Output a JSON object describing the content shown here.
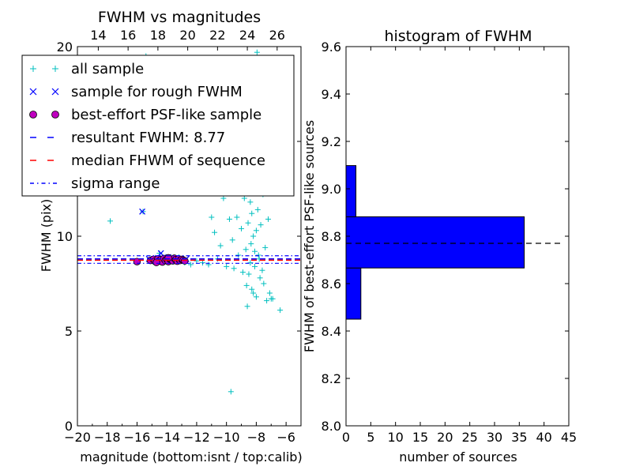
{
  "chart_data": [
    {
      "type": "scatter",
      "title": "FWHM vs magnitudes",
      "xlabel": "magnitude (bottom:isnt / top:calib)",
      "ylabel": "FWHM (pix)",
      "xlim": [
        -20,
        -5
      ],
      "ylim": [
        0,
        20
      ],
      "x_ticks": [
        -20,
        -18,
        -16,
        -14,
        -12,
        -10,
        -8,
        -6
      ],
      "x_tick_labels": [
        "−20",
        "−18",
        "−16",
        "−14",
        "−12",
        "−10",
        "−8",
        "−6"
      ],
      "y_ticks": [
        0,
        5,
        10,
        15,
        20
      ],
      "y_tick_labels": [
        "0",
        "5",
        "10",
        "15",
        "20"
      ],
      "top_axis": {
        "ticks": [
          14,
          16,
          18,
          20,
          22,
          24,
          26
        ],
        "tick_labels": [
          "14",
          "16",
          "18",
          "20",
          "22",
          "24",
          "26"
        ],
        "lim": [
          12.6,
          27.6
        ]
      },
      "legend": {
        "placement": "top-left",
        "entries": [
          {
            "label": "all sample",
            "marker": "+",
            "color": "#00bfbf"
          },
          {
            "label": "sample for rough FWHM",
            "marker": "x",
            "color": "#0000ff"
          },
          {
            "label": "best-effort PSF-like sample",
            "marker": "o",
            "color": "#bf00bf"
          },
          {
            "label": "resultant FWHM: 8.77",
            "line": "dashed",
            "color": "#0000ff"
          },
          {
            "label": "median FHWM of sequence",
            "line": "dashed",
            "color": "#ff0000"
          },
          {
            "label": "sigma range",
            "line": "dashdot",
            "color": "#0000ff"
          }
        ]
      },
      "lines": {
        "resultant_fwhm": 8.77,
        "median_fwhm": 8.77,
        "sigma_range": [
          8.57,
          8.97
        ]
      },
      "series": [
        {
          "name": "all sample",
          "color": "#00bfbf",
          "points": [
            [
              -17.8,
              10.8
            ],
            [
              -15.6,
              11.3
            ],
            [
              -15.4,
              19.5
            ],
            [
              -14.5,
              9.1
            ],
            [
              -13.2,
              8.9
            ],
            [
              -12.8,
              8.6
            ],
            [
              -12.4,
              8.5
            ],
            [
              -12.0,
              8.7
            ],
            [
              -11.6,
              8.6
            ],
            [
              -11.2,
              8.5
            ],
            [
              -11.0,
              11.0
            ],
            [
              -10.8,
              10.2
            ],
            [
              -10.6,
              8.8
            ],
            [
              -10.4,
              9.5
            ],
            [
              -10.2,
              12.0
            ],
            [
              -10.0,
              8.4
            ],
            [
              -9.8,
              10.9
            ],
            [
              -9.7,
              1.8
            ],
            [
              -9.6,
              9.8
            ],
            [
              -9.5,
              8.3
            ],
            [
              -9.4,
              12.5
            ],
            [
              -9.3,
              11.0
            ],
            [
              -9.2,
              9.0
            ],
            [
              -9.1,
              13.0
            ],
            [
              -9.0,
              10.4
            ],
            [
              -8.9,
              8.1
            ],
            [
              -8.8,
              12.0
            ],
            [
              -8.75,
              14.0
            ],
            [
              -8.7,
              9.3
            ],
            [
              -8.65,
              7.4
            ],
            [
              -8.6,
              13.5
            ],
            [
              -8.55,
              10.7
            ],
            [
              -8.5,
              8.0
            ],
            [
              -8.45,
              15.5
            ],
            [
              -8.4,
              11.8
            ],
            [
              -8.35,
              9.6
            ],
            [
              -8.3,
              7.2
            ],
            [
              -8.25,
              13.2
            ],
            [
              -8.2,
              10.0
            ],
            [
              -8.15,
              16.5
            ],
            [
              -8.1,
              8.4
            ],
            [
              -8.05,
              12.6
            ],
            [
              -8.0,
              6.8
            ],
            [
              -7.95,
              19.7
            ],
            [
              -7.9,
              11.4
            ],
            [
              -7.85,
              9.0
            ],
            [
              -7.8,
              14.6
            ],
            [
              -7.75,
              7.8
            ],
            [
              -7.7,
              10.6
            ],
            [
              -7.65,
              15.0
            ],
            [
              -7.6,
              8.2
            ],
            [
              -7.55,
              12.2
            ],
            [
              -7.5,
              7.5
            ],
            [
              -7.45,
              13.8
            ],
            [
              -7.4,
              9.4
            ],
            [
              -7.3,
              6.6
            ],
            [
              -7.2,
              10.9
            ],
            [
              -7.1,
              7.0
            ],
            [
              -7.0,
              6.7
            ],
            [
              -6.9,
              6.7
            ],
            [
              -6.4,
              6.1
            ],
            [
              -8.6,
              6.3
            ],
            [
              -8.2,
              7.0
            ],
            [
              -8.0,
              10.3
            ],
            [
              -8.3,
              11.2
            ],
            [
              -8.5,
              12.8
            ],
            [
              -7.8,
              8.8
            ],
            [
              -8.1,
              9.2
            ],
            [
              -8.4,
              8.6
            ],
            [
              -7.9,
              13.1
            ]
          ]
        },
        {
          "name": "sample for rough FWHM",
          "color": "#0000ff",
          "points": [
            [
              -15.65,
              11.3
            ],
            [
              -14.4,
              9.1
            ],
            [
              -15.2,
              8.8
            ],
            [
              -14.9,
              8.7
            ],
            [
              -14.6,
              8.85
            ],
            [
              -14.2,
              8.75
            ],
            [
              -13.9,
              8.9
            ],
            [
              -13.6,
              8.7
            ],
            [
              -13.3,
              8.8
            ],
            [
              -13.0,
              8.75
            ],
            [
              -12.7,
              8.8
            ]
          ]
        },
        {
          "name": "best-effort PSF-like sample",
          "color": "#bf00bf",
          "points": [
            [
              -16.0,
              8.66
            ],
            [
              -15.1,
              8.72
            ],
            [
              -14.9,
              8.78
            ],
            [
              -14.8,
              8.68
            ],
            [
              -14.6,
              8.8
            ],
            [
              -14.5,
              8.7
            ],
            [
              -14.4,
              8.76
            ],
            [
              -14.3,
              8.64
            ],
            [
              -14.2,
              8.82
            ],
            [
              -14.1,
              8.72
            ],
            [
              -14.0,
              8.78
            ],
            [
              -13.9,
              8.66
            ],
            [
              -13.8,
              8.8
            ],
            [
              -13.7,
              8.74
            ],
            [
              -13.6,
              8.7
            ],
            [
              -13.5,
              8.84
            ],
            [
              -13.4,
              8.76
            ],
            [
              -13.3,
              8.68
            ],
            [
              -13.2,
              8.8
            ],
            [
              -13.1,
              8.72
            ],
            [
              -13.0,
              8.78
            ],
            [
              -12.9,
              8.74
            ],
            [
              -12.8,
              8.7
            ],
            [
              -13.9,
              8.86
            ],
            [
              -14.7,
              8.62
            ]
          ]
        }
      ]
    },
    {
      "type": "bar",
      "orientation": "horizontal",
      "title": "histogram of FWHM",
      "xlabel": "number of sources",
      "ylabel": "FWHM of best-effort PSF-like sources",
      "xlim": [
        0,
        45
      ],
      "ylim": [
        8.0,
        9.6
      ],
      "x_ticks": [
        0,
        5,
        10,
        15,
        20,
        25,
        30,
        35,
        40,
        45
      ],
      "x_tick_labels": [
        "0",
        "5",
        "10",
        "15",
        "20",
        "25",
        "30",
        "35",
        "40",
        "45"
      ],
      "y_ticks": [
        8.0,
        8.2,
        8.4,
        8.6,
        8.8,
        9.0,
        9.2,
        9.4,
        9.6
      ],
      "y_tick_labels": [
        "8.0",
        "8.2",
        "8.4",
        "8.6",
        "8.8",
        "9.0",
        "9.2",
        "9.4",
        "9.6"
      ],
      "bar_color": "#0000ff",
      "bins": [
        {
          "low": 8.45,
          "high": 8.666,
          "count": 3
        },
        {
          "low": 8.666,
          "high": 8.882,
          "count": 36
        },
        {
          "low": 8.882,
          "high": 9.098,
          "count": 2
        }
      ],
      "reference_line": {
        "value": 8.77,
        "style": "dashed",
        "color": "#000000",
        "x_range": [
          0,
          43.5
        ]
      }
    }
  ]
}
